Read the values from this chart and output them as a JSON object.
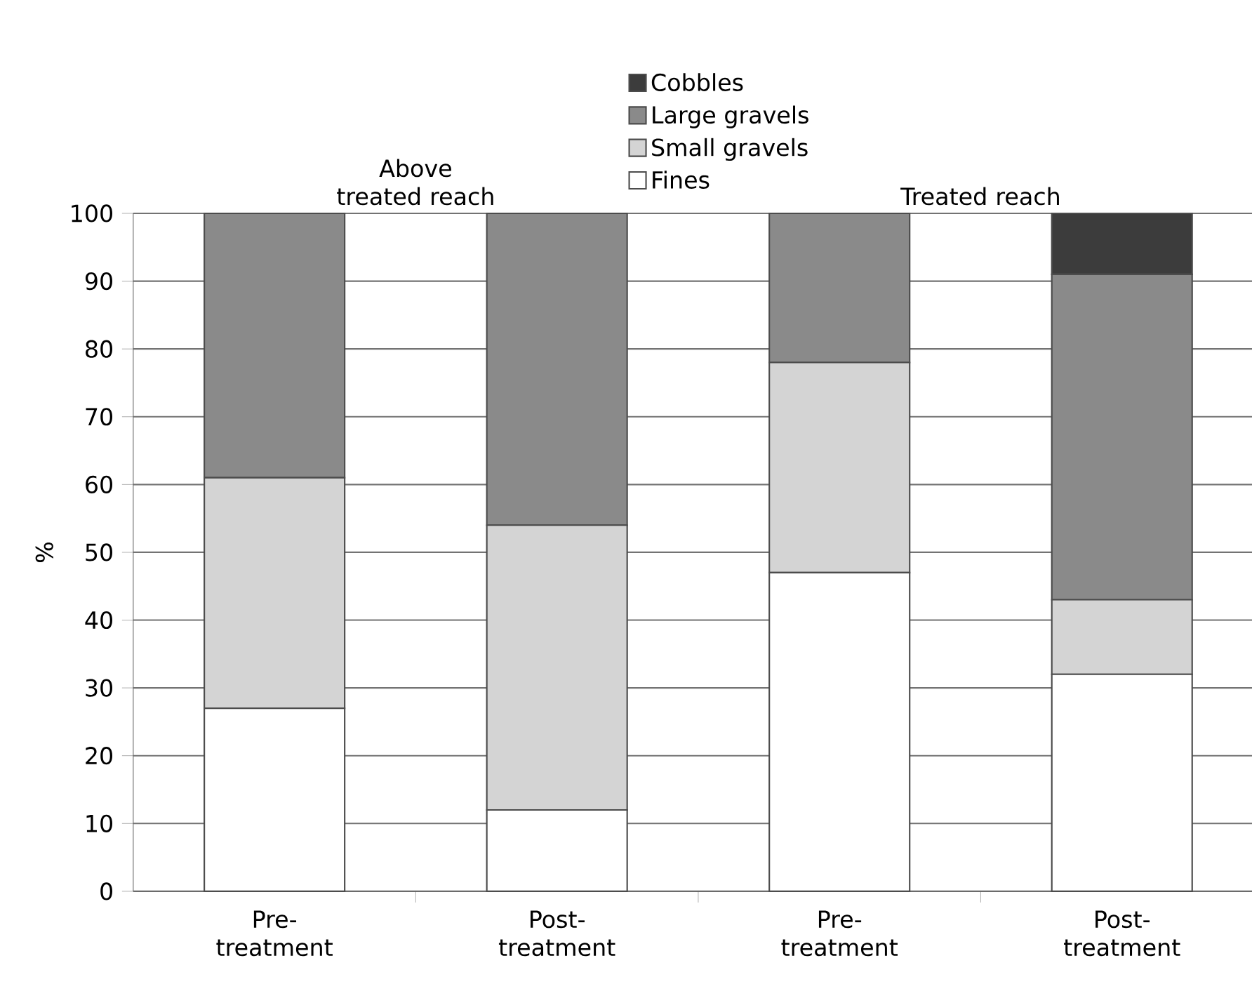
{
  "chart_data": {
    "type": "bar",
    "stacked": true,
    "ylabel": "%",
    "categories": [
      "Pre-treatment",
      "Post-treatment",
      "Pre-treatment",
      "Post-treatment"
    ],
    "series": [
      {
        "name": "Fines",
        "color": "#ffffff",
        "values": [
          27,
          12,
          47,
          32
        ]
      },
      {
        "name": "Small gravels",
        "color": "#d4d4d4",
        "values": [
          34,
          42,
          31,
          11
        ]
      },
      {
        "name": "Large gravels",
        "color": "#8a8a8a",
        "values": [
          39,
          46,
          22,
          48
        ]
      },
      {
        "name": "Cobbles",
        "color": "#3c3c3c",
        "values": [
          0,
          0,
          0,
          9
        ]
      }
    ],
    "annotations": [
      "Above treated reach",
      "Treated reach"
    ],
    "ylim": [
      0,
      100
    ],
    "yticks": [
      0,
      10,
      20,
      30,
      40,
      50,
      60,
      70,
      80,
      90,
      100
    ],
    "grid": "y",
    "legend": "top"
  }
}
